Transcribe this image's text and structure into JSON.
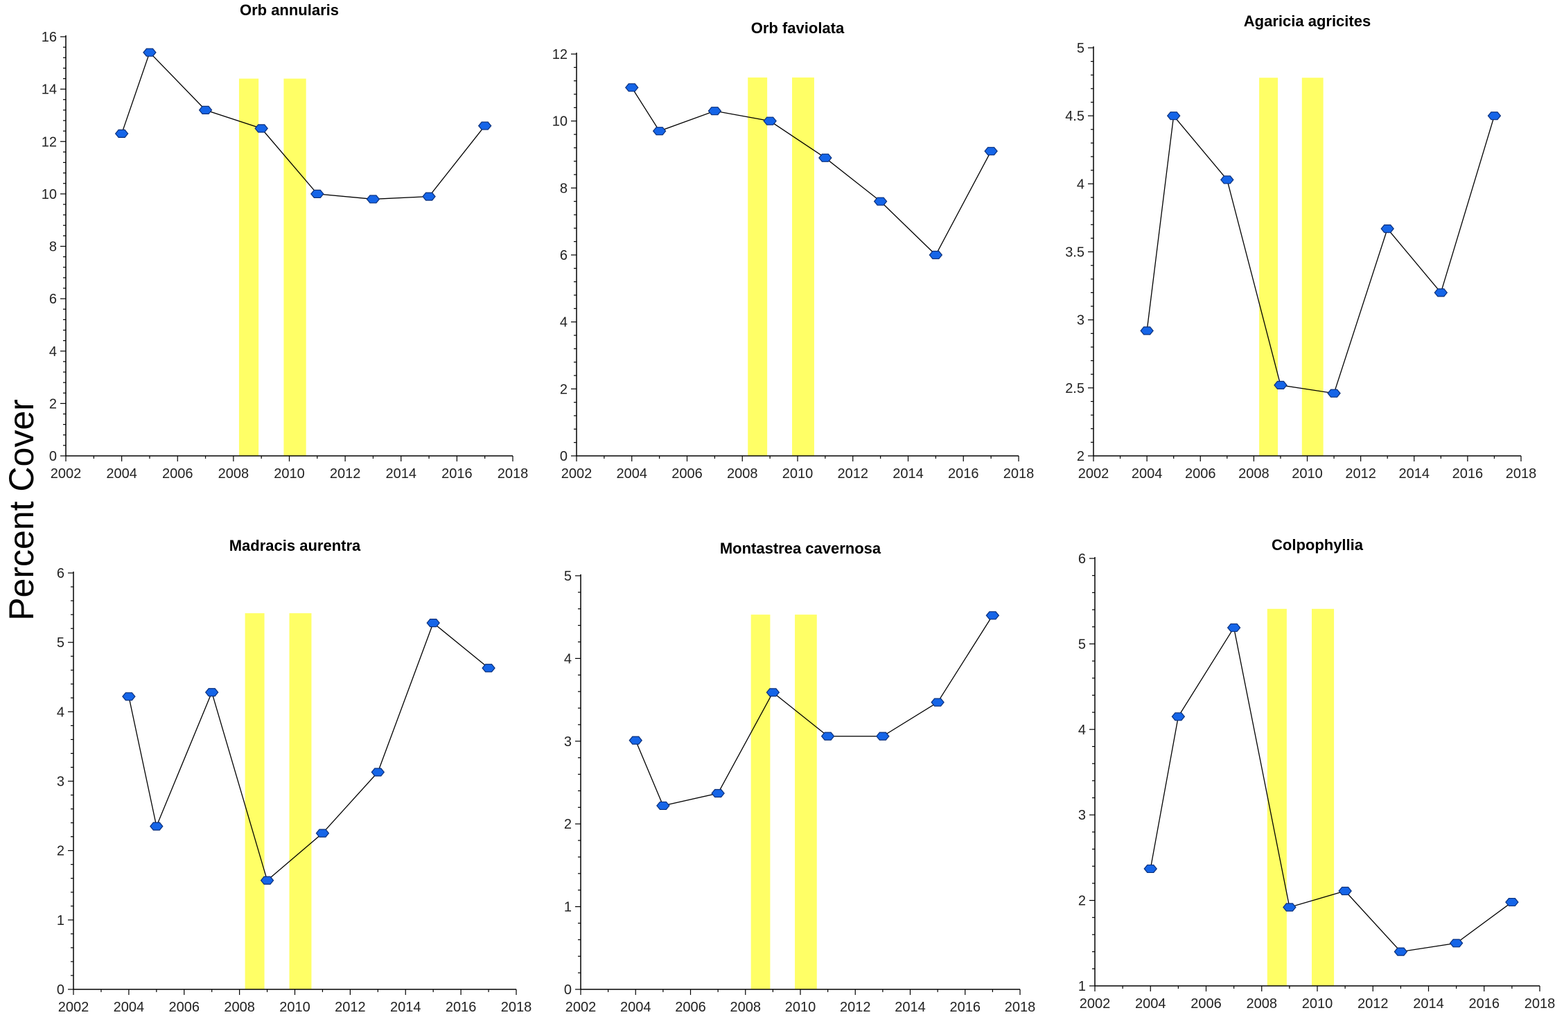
{
  "ylabel": "Percent Cover",
  "chart_data": [
    {
      "type": "line",
      "title": "Orb annularis",
      "xlim": [
        2002,
        2018
      ],
      "ylim": [
        0,
        16
      ],
      "x_ticks": [
        2002,
        2004,
        2006,
        2008,
        2010,
        2012,
        2014,
        2016,
        2018
      ],
      "y_ticks": [
        0,
        2,
        4,
        6,
        8,
        10,
        12,
        14,
        16
      ],
      "y_tick_labels": [
        "0",
        "2",
        "4",
        "6",
        "8",
        "10",
        "12",
        "14",
        "16"
      ],
      "x": [
        2004,
        2005,
        2007,
        2009,
        2011,
        2013,
        2015,
        2017
      ],
      "values": [
        12.3,
        15.4,
        13.2,
        12.5,
        10.0,
        9.8,
        9.9,
        12.6
      ],
      "highlight_bands": [
        [
          2008.2,
          2008.9
        ],
        [
          2009.8,
          2010.6
        ]
      ],
      "band_top": 14.4,
      "band_color": "#ffff66",
      "marker_color": "#1565e8"
    },
    {
      "type": "line",
      "title": "Orb faviolata",
      "xlim": [
        2002,
        2018
      ],
      "ylim": [
        0,
        12
      ],
      "x_ticks": [
        2002,
        2004,
        2006,
        2008,
        2010,
        2012,
        2014,
        2016,
        2018
      ],
      "y_ticks": [
        0,
        2,
        4,
        6,
        8,
        10,
        12
      ],
      "y_tick_labels": [
        "0",
        "2",
        "4",
        "6",
        "8",
        "10",
        "12"
      ],
      "x": [
        2004,
        2005,
        2007,
        2009,
        2011,
        2013,
        2015,
        2017
      ],
      "values": [
        11.0,
        9.7,
        10.3,
        10.0,
        8.9,
        7.6,
        6.0,
        9.1
      ],
      "highlight_bands": [
        [
          2008.2,
          2008.9
        ],
        [
          2009.8,
          2010.6
        ]
      ],
      "band_top": 11.3,
      "band_color": "#ffff66",
      "marker_color": "#1565e8"
    },
    {
      "type": "line",
      "title": "Agaricia agricites",
      "xlim": [
        2002,
        2018
      ],
      "ylim": [
        2,
        5
      ],
      "x_ticks": [
        2002,
        2004,
        2006,
        2008,
        2010,
        2012,
        2014,
        2016,
        2018
      ],
      "y_ticks": [
        2,
        2.5,
        3,
        3.5,
        4,
        4.5,
        5
      ],
      "y_tick_labels": [
        "2",
        "2.5",
        "3",
        "3.5",
        "4",
        "4.5",
        "5"
      ],
      "x": [
        2004,
        2005,
        2007,
        2009,
        2011,
        2013,
        2015,
        2017
      ],
      "values": [
        2.92,
        4.5,
        4.03,
        2.52,
        2.46,
        3.67,
        3.2,
        4.5
      ],
      "highlight_bands": [
        [
          2008.2,
          2008.9
        ],
        [
          2009.8,
          2010.6
        ]
      ],
      "band_top": 4.78,
      "band_color": "#ffff66",
      "marker_color": "#1565e8"
    },
    {
      "type": "line",
      "title": "Madracis aurentra",
      "xlim": [
        2002,
        2018
      ],
      "ylim": [
        0,
        6
      ],
      "x_ticks": [
        2002,
        2004,
        2006,
        2008,
        2010,
        2012,
        2014,
        2016,
        2018
      ],
      "y_ticks": [
        0,
        1,
        2,
        3,
        4,
        5,
        6
      ],
      "y_tick_labels": [
        "0",
        "1",
        "2",
        "3",
        "4",
        "5",
        "6"
      ],
      "x": [
        2004,
        2005,
        2007,
        2009,
        2011,
        2013,
        2015,
        2017
      ],
      "values": [
        4.22,
        2.35,
        4.28,
        1.57,
        2.25,
        3.13,
        5.28,
        4.63
      ],
      "highlight_bands": [
        [
          2008.2,
          2008.9
        ],
        [
          2009.8,
          2010.6
        ]
      ],
      "band_top": 5.42,
      "band_color": "#ffff66",
      "marker_color": "#1565e8"
    },
    {
      "type": "line",
      "title": "Montastrea cavernosa",
      "xlim": [
        2002,
        2018
      ],
      "ylim": [
        0,
        5
      ],
      "x_ticks": [
        2002,
        2004,
        2006,
        2008,
        2010,
        2012,
        2014,
        2016,
        2018
      ],
      "y_ticks": [
        0,
        1,
        2,
        3,
        4,
        5
      ],
      "y_tick_labels": [
        "0",
        "1",
        "2",
        "3",
        "4",
        "5"
      ],
      "x": [
        2004,
        2005,
        2007,
        2009,
        2011,
        2013,
        2015,
        2017
      ],
      "values": [
        3.01,
        2.22,
        2.37,
        3.59,
        3.06,
        3.06,
        3.47,
        4.52
      ],
      "highlight_bands": [
        [
          2008.2,
          2008.9
        ],
        [
          2009.8,
          2010.6
        ]
      ],
      "band_top": 4.53,
      "band_color": "#ffff66",
      "marker_color": "#1565e8"
    },
    {
      "type": "line",
      "title": "Colpophyllia",
      "xlim": [
        2002,
        2018
      ],
      "ylim": [
        1,
        6
      ],
      "x_ticks": [
        2002,
        2004,
        2006,
        2008,
        2010,
        2012,
        2014,
        2016,
        2018
      ],
      "y_ticks": [
        1,
        2,
        3,
        4,
        5,
        6
      ],
      "y_tick_labels": [
        "1",
        "2",
        "3",
        "4",
        "5",
        "6"
      ],
      "x": [
        2004,
        2005,
        2007,
        2009,
        2011,
        2013,
        2015,
        2017
      ],
      "values": [
        2.37,
        4.15,
        5.19,
        1.92,
        2.11,
        1.4,
        1.5,
        1.98
      ],
      "highlight_bands": [
        [
          2008.2,
          2008.9
        ],
        [
          2009.8,
          2010.6
        ]
      ],
      "band_top": 5.41,
      "band_color": "#ffff66",
      "marker_color": "#1565e8"
    }
  ]
}
